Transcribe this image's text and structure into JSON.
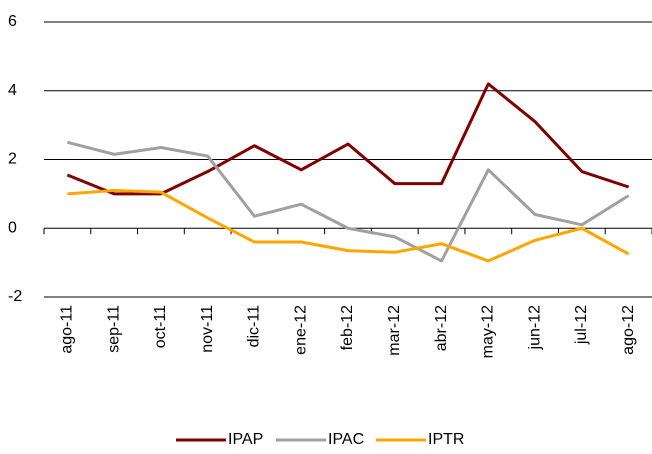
{
  "chart_data": {
    "type": "line",
    "categories": [
      "ago-11",
      "sep-11",
      "oct-11",
      "nov-11",
      "dic-11",
      "ene-12",
      "feb-12",
      "mar-12",
      "abr-12",
      "may-12",
      "jun-12",
      "jul-12",
      "ago-12"
    ],
    "series": [
      {
        "name": "IPAP",
        "color": "#800000",
        "values": [
          1.55,
          1.0,
          1.0,
          1.65,
          2.4,
          1.7,
          2.45,
          1.3,
          1.3,
          4.2,
          3.1,
          1.65,
          1.2
        ]
      },
      {
        "name": "IPAC",
        "color": "#a0a0a0",
        "values": [
          2.5,
          2.15,
          2.35,
          2.1,
          0.35,
          0.7,
          0.0,
          -0.25,
          -0.95,
          1.7,
          0.4,
          0.1,
          0.95
        ]
      },
      {
        "name": "IPTR",
        "color": "#ffa500",
        "values": [
          1.0,
          1.1,
          1.05,
          0.3,
          -0.4,
          -0.4,
          -0.65,
          -0.7,
          -0.45,
          -0.95,
          -0.35,
          0.0,
          -0.75
        ]
      }
    ],
    "ylim": [
      -2,
      6
    ],
    "yticks": [
      -2,
      0,
      2,
      4,
      6
    ],
    "grid": true,
    "legend": "bottom"
  }
}
